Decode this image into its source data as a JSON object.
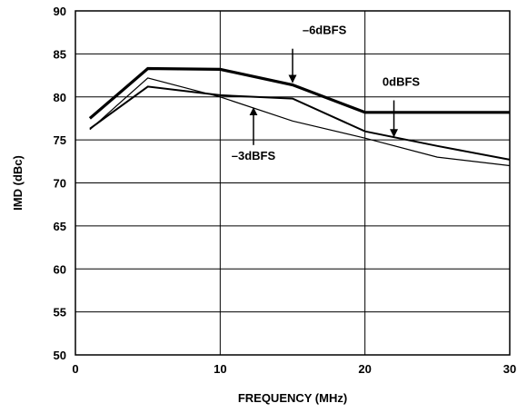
{
  "chart_data": {
    "type": "line",
    "xlabel": "FREQUENCY (MHz)",
    "ylabel": "IMD (dBc)",
    "xlim": [
      0,
      30
    ],
    "ylim": [
      50,
      90
    ],
    "xticks": [
      "0",
      "10",
      "20",
      "30"
    ],
    "yticks": [
      "50",
      "55",
      "60",
      "65",
      "70",
      "75",
      "80",
      "85",
      "90"
    ],
    "grid": true,
    "series": [
      {
        "name": "–6dBFS",
        "stroke": 3.2,
        "x": [
          1,
          5,
          10,
          15,
          20,
          25,
          30
        ],
        "y": [
          77.5,
          83.3,
          83.2,
          81.4,
          78.2,
          78.2,
          78.2
        ]
      },
      {
        "name": "0dBFS",
        "stroke": 2.0,
        "x": [
          1,
          5,
          10,
          15,
          20,
          25,
          30
        ],
        "y": [
          76.3,
          81.2,
          80.2,
          79.8,
          76.0,
          74.3,
          72.7
        ]
      },
      {
        "name": "–3dBFS",
        "stroke": 1.2,
        "x": [
          1,
          5,
          10,
          15,
          20,
          25,
          30
        ],
        "y": [
          76.2,
          82.2,
          80.0,
          77.2,
          75.2,
          73.0,
          72.0
        ]
      }
    ],
    "annotations": [
      {
        "text": "–6dBFS",
        "tx": 17.2,
        "ty": 87.3,
        "from": [
          15.0,
          85.6
        ],
        "to": [
          15.0,
          81.7
        ]
      },
      {
        "text": "0dBFS",
        "tx": 22.5,
        "ty": 81.3,
        "from": [
          22.0,
          79.6
        ],
        "to": [
          22.0,
          75.4
        ]
      },
      {
        "text": "–3dBFS",
        "tx": 12.3,
        "ty": 72.7,
        "from": [
          12.3,
          74.4
        ],
        "to": [
          12.3,
          78.7
        ]
      }
    ],
    "colors": {
      "line": "#000000",
      "grid": "#000000",
      "background": "#ffffff"
    }
  }
}
